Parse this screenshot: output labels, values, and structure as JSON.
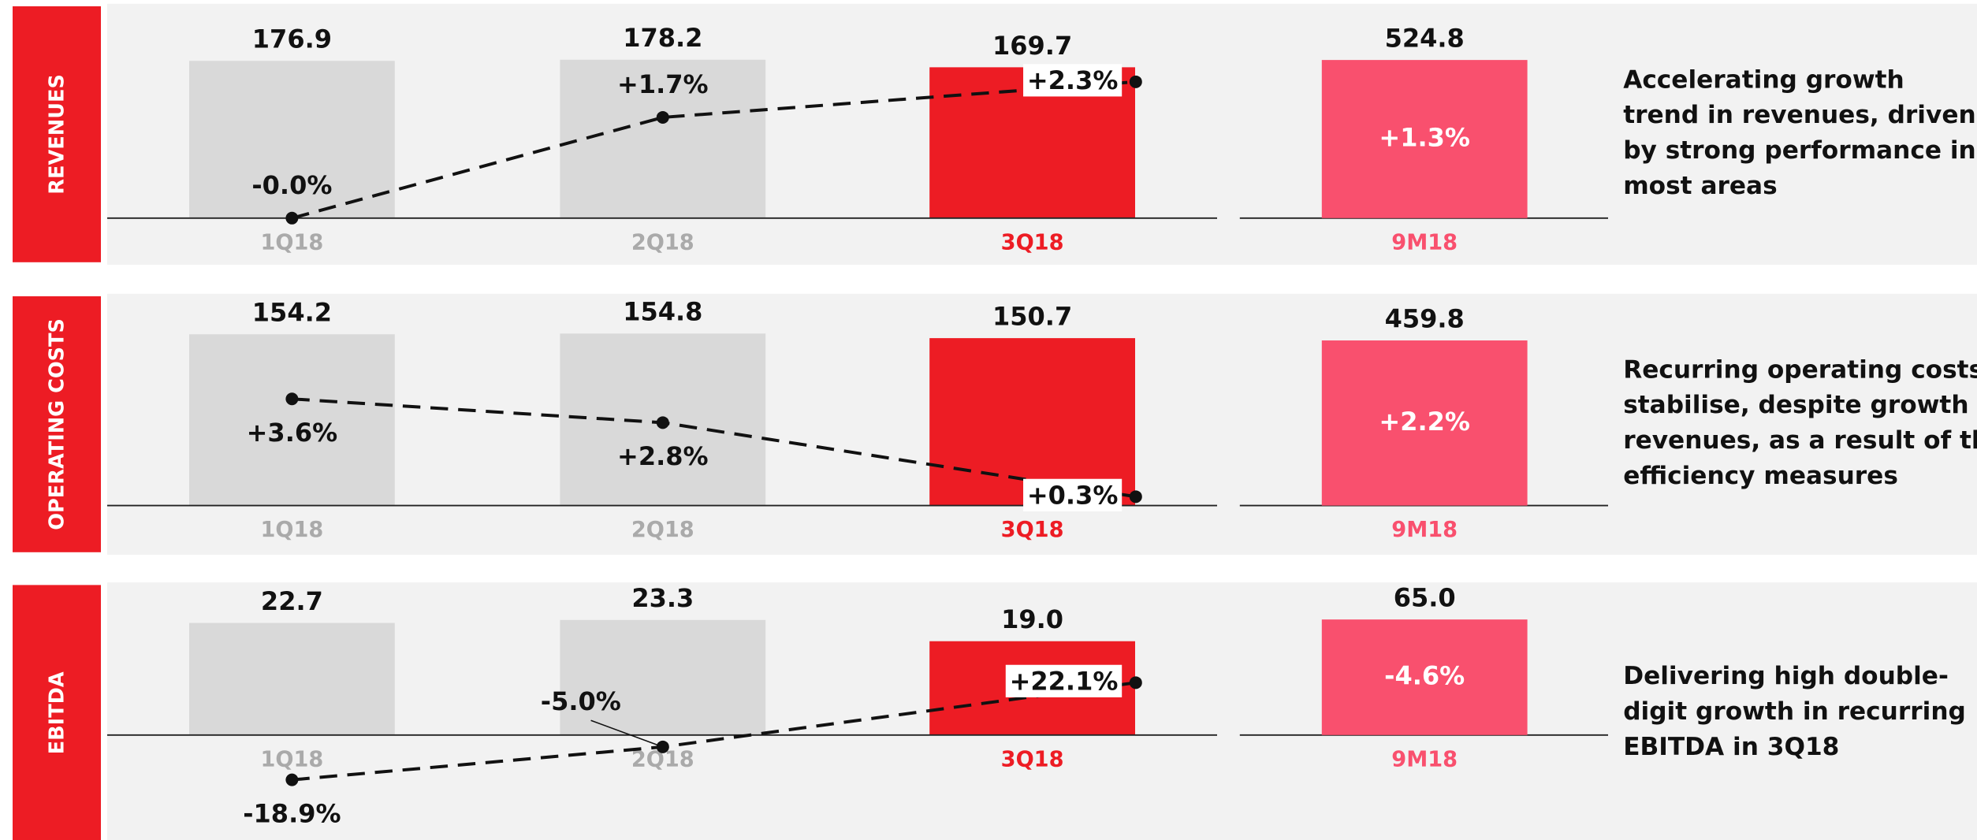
{
  "chart_data": [
    {
      "type": "bar",
      "title": "REVENUES",
      "categories": [
        "1Q18",
        "2Q18",
        "3Q18"
      ],
      "values": [
        176.9,
        178.2,
        169.7
      ],
      "value_labels": [
        "176.9",
        "178.2",
        "169.7"
      ],
      "colors": [
        "#d9d9d9",
        "#d9d9d9",
        "#ed1c24"
      ],
      "category_colors": [
        "#aaaaaa",
        "#aaaaaa",
        "#ed1c24"
      ],
      "ylim": [
        0,
        200
      ],
      "growth": {
        "values": [
          0,
          1.7,
          2.3
        ],
        "value_labels": [
          "-0.0%",
          "+1.7%",
          "+2.3%"
        ],
        "y2lim": [
          0,
          3
        ]
      },
      "total": {
        "category": "9M18",
        "value": 524.8,
        "value_label": "524.8",
        "growth_value": 1.3,
        "growth_label": "+1.3%",
        "color": "#f9506e",
        "category_color": "#f9506e",
        "ylim": [
          0,
          590
        ]
      },
      "comment_lines": [
        "Accelerating growth",
        "trend in revenues, driven",
        "by strong performance in",
        "most areas"
      ]
    },
    {
      "type": "bar",
      "title": "OPERATING COSTS",
      "categories": [
        "1Q18",
        "2Q18",
        "3Q18"
      ],
      "values": [
        154.2,
        154.8,
        150.7
      ],
      "value_labels": [
        "154.2",
        "154.8",
        "150.7"
      ],
      "colors": [
        "#d9d9d9",
        "#d9d9d9",
        "#ed1c24"
      ],
      "category_colors": [
        "#aaaaaa",
        "#aaaaaa",
        "#ed1c24"
      ],
      "ylim": [
        0,
        160
      ],
      "growth": {
        "values": [
          3.6,
          2.8,
          0.3
        ],
        "value_labels": [
          "+3.6%",
          "+2.8%",
          "+0.3%"
        ],
        "y2lim": [
          0,
          6
        ]
      },
      "total": {
        "category": "9M18",
        "value": 459.8,
        "value_label": "459.8",
        "growth_value": 2.2,
        "growth_label": "+2.2%",
        "color": "#f9506e",
        "category_color": "#f9506e",
        "ylim": [
          0,
          495
        ]
      },
      "comment_lines": [
        "Recurring operating costs",
        "stabilise, despite growth in",
        "revenues, as a result of the",
        "efficiency measures"
      ]
    },
    {
      "type": "bar",
      "title": "EBITDA",
      "categories": [
        "1Q18",
        "2Q18",
        "3Q18"
      ],
      "values": [
        22.7,
        23.3,
        19.0
      ],
      "value_labels": [
        "22.7",
        "23.3",
        "19.0"
      ],
      "colors": [
        "#d9d9d9",
        "#d9d9d9",
        "#ed1c24"
      ],
      "category_colors": [
        "#aaaaaa",
        "#aaaaaa",
        "#ed1c24"
      ],
      "ylim": [
        0,
        36
      ],
      "growth": {
        "values": [
          -18.9,
          -5.0,
          22.1
        ],
        "value_labels": [
          "-18.9%",
          "-5.0%",
          "+22.1%"
        ],
        "y2lim": [
          0,
          75
        ]
      },
      "total": {
        "category": "9M18",
        "value": 65.0,
        "value_label": "65.0",
        "growth_value": -4.6,
        "growth_label": "-4.6%",
        "color": "#f9506e",
        "category_color": "#f9506e",
        "ylim": [
          0,
          100
        ]
      },
      "comment_lines": [
        "Delivering high double-",
        "digit growth in recurring",
        "EBITDA in 3Q18"
      ]
    }
  ]
}
